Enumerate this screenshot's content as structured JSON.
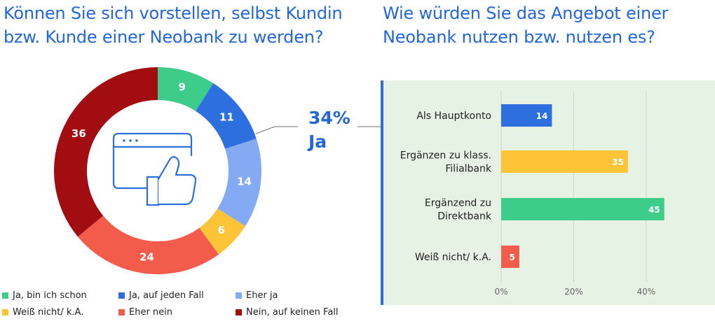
{
  "left": {
    "title": "Können Sie sich vorstellen, selbst Kundin bzw. Kunde einer Neobank zu werden?",
    "callout_value": "34%",
    "callout_label": "Ja",
    "icon": "browser-thumbs-up-icon"
  },
  "right": {
    "title": "Wie würden Sie das Angebot einer Neobank nutzen bzw. nutzen es?"
  },
  "chart_data": [
    {
      "type": "pie",
      "title": "Können Sie sich vorstellen, selbst Kundin bzw. Kunde einer Neobank zu werden?",
      "categories": [
        "Ja, bin ich schon",
        "Ja, auf jeden Fall",
        "Eher ja",
        "Weiß nicht/ k.A.",
        "Eher nein",
        "Nein, auf keinen Fall"
      ],
      "values": [
        9,
        11,
        14,
        6,
        24,
        36
      ],
      "colors": [
        "#3dcc8a",
        "#2e6fe0",
        "#84aaf3",
        "#fdc437",
        "#f35b4b",
        "#a20d12"
      ],
      "legend": "bottom",
      "donut": true
    },
    {
      "type": "bar",
      "orientation": "horizontal",
      "title": "Wie würden Sie das Angebot einer Neobank nutzen bzw. nutzen es?",
      "categories": [
        [
          "Als Hauptkonto"
        ],
        [
          "Ergänzen zu klass.",
          "Filialbank"
        ],
        [
          "Ergänzend zu",
          "Direktbank"
        ],
        [
          "Weiß nicht/ k.A."
        ]
      ],
      "values": [
        14,
        35,
        45,
        5
      ],
      "colors": [
        "#2e6fe0",
        "#fdc437",
        "#3dcc8a",
        "#f35b4b"
      ],
      "xlim": [
        0,
        50
      ],
      "xticks": [
        "0%",
        "20%",
        "40%"
      ],
      "xtick_values": [
        0,
        20,
        40
      ],
      "grid": true
    }
  ]
}
